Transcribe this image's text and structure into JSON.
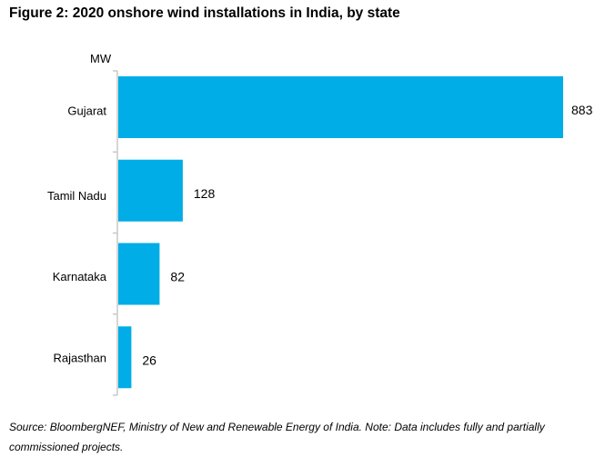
{
  "title": "Figure 2: 2020 onshore wind installations in India, by state",
  "source": "Source: BloombergNEF, Ministry of New and Renewable Energy of India. Note: Data includes fully and partially commissioned projects.",
  "chart_data": {
    "type": "bar",
    "orientation": "horizontal",
    "title": "Figure 2: 2020 onshore wind installations in India, by state",
    "unit_label": "MW",
    "categories": [
      "Gujarat",
      "Tamil Nadu",
      "Karnataka",
      "Rajasthan"
    ],
    "values": [
      883,
      128,
      82,
      26
    ],
    "data_labels": [
      "883",
      "128",
      "82",
      "26"
    ],
    "xlim": [
      0,
      883
    ],
    "grid": false,
    "bar_color": "#00ADE6"
  }
}
